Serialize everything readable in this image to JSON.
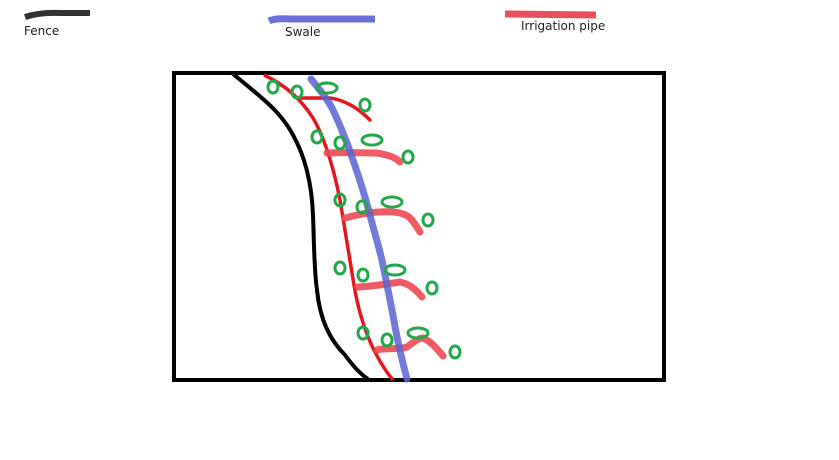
{
  "legend": {
    "fence": {
      "label": "Fence",
      "color": "#333333"
    },
    "swale": {
      "label": "Swale",
      "color": "#6b74d6"
    },
    "pipe": {
      "label": "Irrigation pipe",
      "color": "#e8505b"
    }
  },
  "colors": {
    "boundary": "#000000",
    "fence_line": "#000000",
    "main_pipe": "#e3171e",
    "branch_pipe": "#ee4a52",
    "plant": "#22a84a"
  }
}
